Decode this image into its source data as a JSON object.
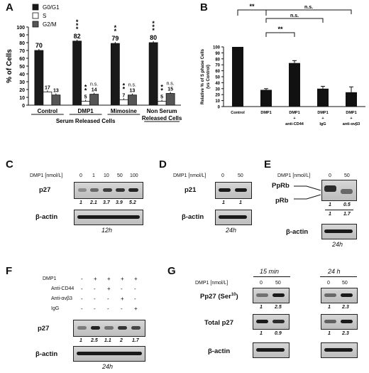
{
  "panels": {
    "a": "A",
    "b": "B",
    "c": "C",
    "d": "D",
    "e": "E",
    "f": "F",
    "g": "G"
  },
  "chart_data": [
    {
      "type": "bar",
      "ylabel": "% of Cells",
      "ylim": [
        0,
        100
      ],
      "yticks": [
        "0",
        "10",
        "20",
        "30",
        "40",
        "50",
        "60",
        "70",
        "80",
        "90",
        "100"
      ],
      "categories": [
        "Control",
        "DMP1",
        "Mimosine",
        "Non Serum Released Cells"
      ],
      "group_label": "Serum Released Cells",
      "series": [
        {
          "name": "G0/G1",
          "color": "#1a1a1a",
          "values": [
            70,
            82,
            79,
            80
          ]
        },
        {
          "name": "S",
          "color": "#ffffff",
          "values": [
            17,
            5,
            7,
            5
          ]
        },
        {
          "name": "G2/M",
          "color": "#555555",
          "values": [
            13,
            14,
            13,
            15
          ]
        }
      ],
      "data_labels": [
        [
          "70",
          "17",
          "13"
        ],
        [
          "82",
          "5",
          "14"
        ],
        [
          "79",
          "7",
          "13"
        ],
        [
          "80",
          "5",
          "15"
        ]
      ],
      "significance": {
        "g0": [
          "",
          "***",
          "**",
          "***"
        ],
        "s": [
          "",
          "**",
          "**",
          "**"
        ],
        "g2": [
          "",
          "n.s.",
          "n.s.",
          "n.s."
        ]
      }
    },
    {
      "type": "bar",
      "ylabel": "Relative % of S phase Cells (vs Control)",
      "ylim": [
        0,
        100
      ],
      "yticks": [
        "0",
        "10",
        "20",
        "30",
        "40",
        "50",
        "60",
        "70",
        "80",
        "90",
        "100"
      ],
      "categories": [
        "Control",
        "DMP1",
        "DMP1 + anti-CD44",
        "DMP1 + IgG",
        "DMP1 + anti-αvβ3"
      ],
      "values": [
        100,
        28,
        73,
        30,
        24
      ],
      "errors": [
        0,
        2,
        4,
        4,
        9
      ],
      "brackets": [
        {
          "from": 0,
          "to": 1,
          "label": "**"
        },
        {
          "from": 1,
          "to": 4,
          "label": "n.s."
        },
        {
          "from": 1,
          "to": 3,
          "label": "n.s."
        },
        {
          "from": 1,
          "to": 2,
          "label": "**"
        }
      ]
    }
  ],
  "blots": {
    "c": {
      "treatment": "DMP1 [nmol/L]",
      "doses": [
        "0",
        "1",
        "10",
        "50",
        "100"
      ],
      "protein": "p27",
      "quant": [
        "1",
        "2.1",
        "3.7",
        "3.9",
        "5.2"
      ],
      "loading": "β-actin",
      "time": "12h"
    },
    "d": {
      "treatment": "DMP1 [nmol/L]",
      "doses": [
        "0",
        "50"
      ],
      "protein": "p21",
      "quant": [
        "1",
        "1"
      ],
      "loading": "β-actin",
      "time": "24h"
    },
    "e": {
      "treatment": "DMP1 [nmol/L]",
      "doses": [
        "0",
        "50"
      ],
      "band_top": "PpRb",
      "band_bottom": "pRb",
      "quant_top": [
        "1",
        "0.5"
      ],
      "quant_bottom": [
        "1",
        "1.7"
      ],
      "loading": "β-actin",
      "time": "24h"
    },
    "f": {
      "rows": [
        {
          "label": "DMP1",
          "signs": [
            "-",
            "+",
            "+",
            "+",
            "+"
          ]
        },
        {
          "label": "Anti-CD44",
          "signs": [
            "-",
            "-",
            "+",
            "-",
            "-"
          ]
        },
        {
          "label": "Anti-αvβ3",
          "signs": [
            "-",
            "-",
            "-",
            "+",
            "-"
          ]
        },
        {
          "label": "IgG",
          "signs": [
            "-",
            "-",
            "-",
            "-",
            "+"
          ]
        }
      ],
      "protein": "p27",
      "quant": [
        "1",
        "2.5",
        "1.1",
        "2",
        "1.7"
      ],
      "loading": "β-actin",
      "time": "24h"
    },
    "g": {
      "treatment": "DMP1 [nmol/L]",
      "time1": "15 min",
      "time2": "24 h",
      "doses1": [
        "0",
        "50"
      ],
      "doses2": [
        "0",
        "50"
      ],
      "protein1": "Pp27 (Ser",
      "protein1_sup": "10",
      "protein1_end": ")",
      "quant1a": [
        "1",
        "2.5"
      ],
      "quant1b": [
        "1",
        "2.3"
      ],
      "protein2": "Total p27",
      "quant2a": [
        "1",
        "0.9"
      ],
      "quant2b": [
        "1",
        "2.3"
      ],
      "loading": "β-actin"
    }
  }
}
